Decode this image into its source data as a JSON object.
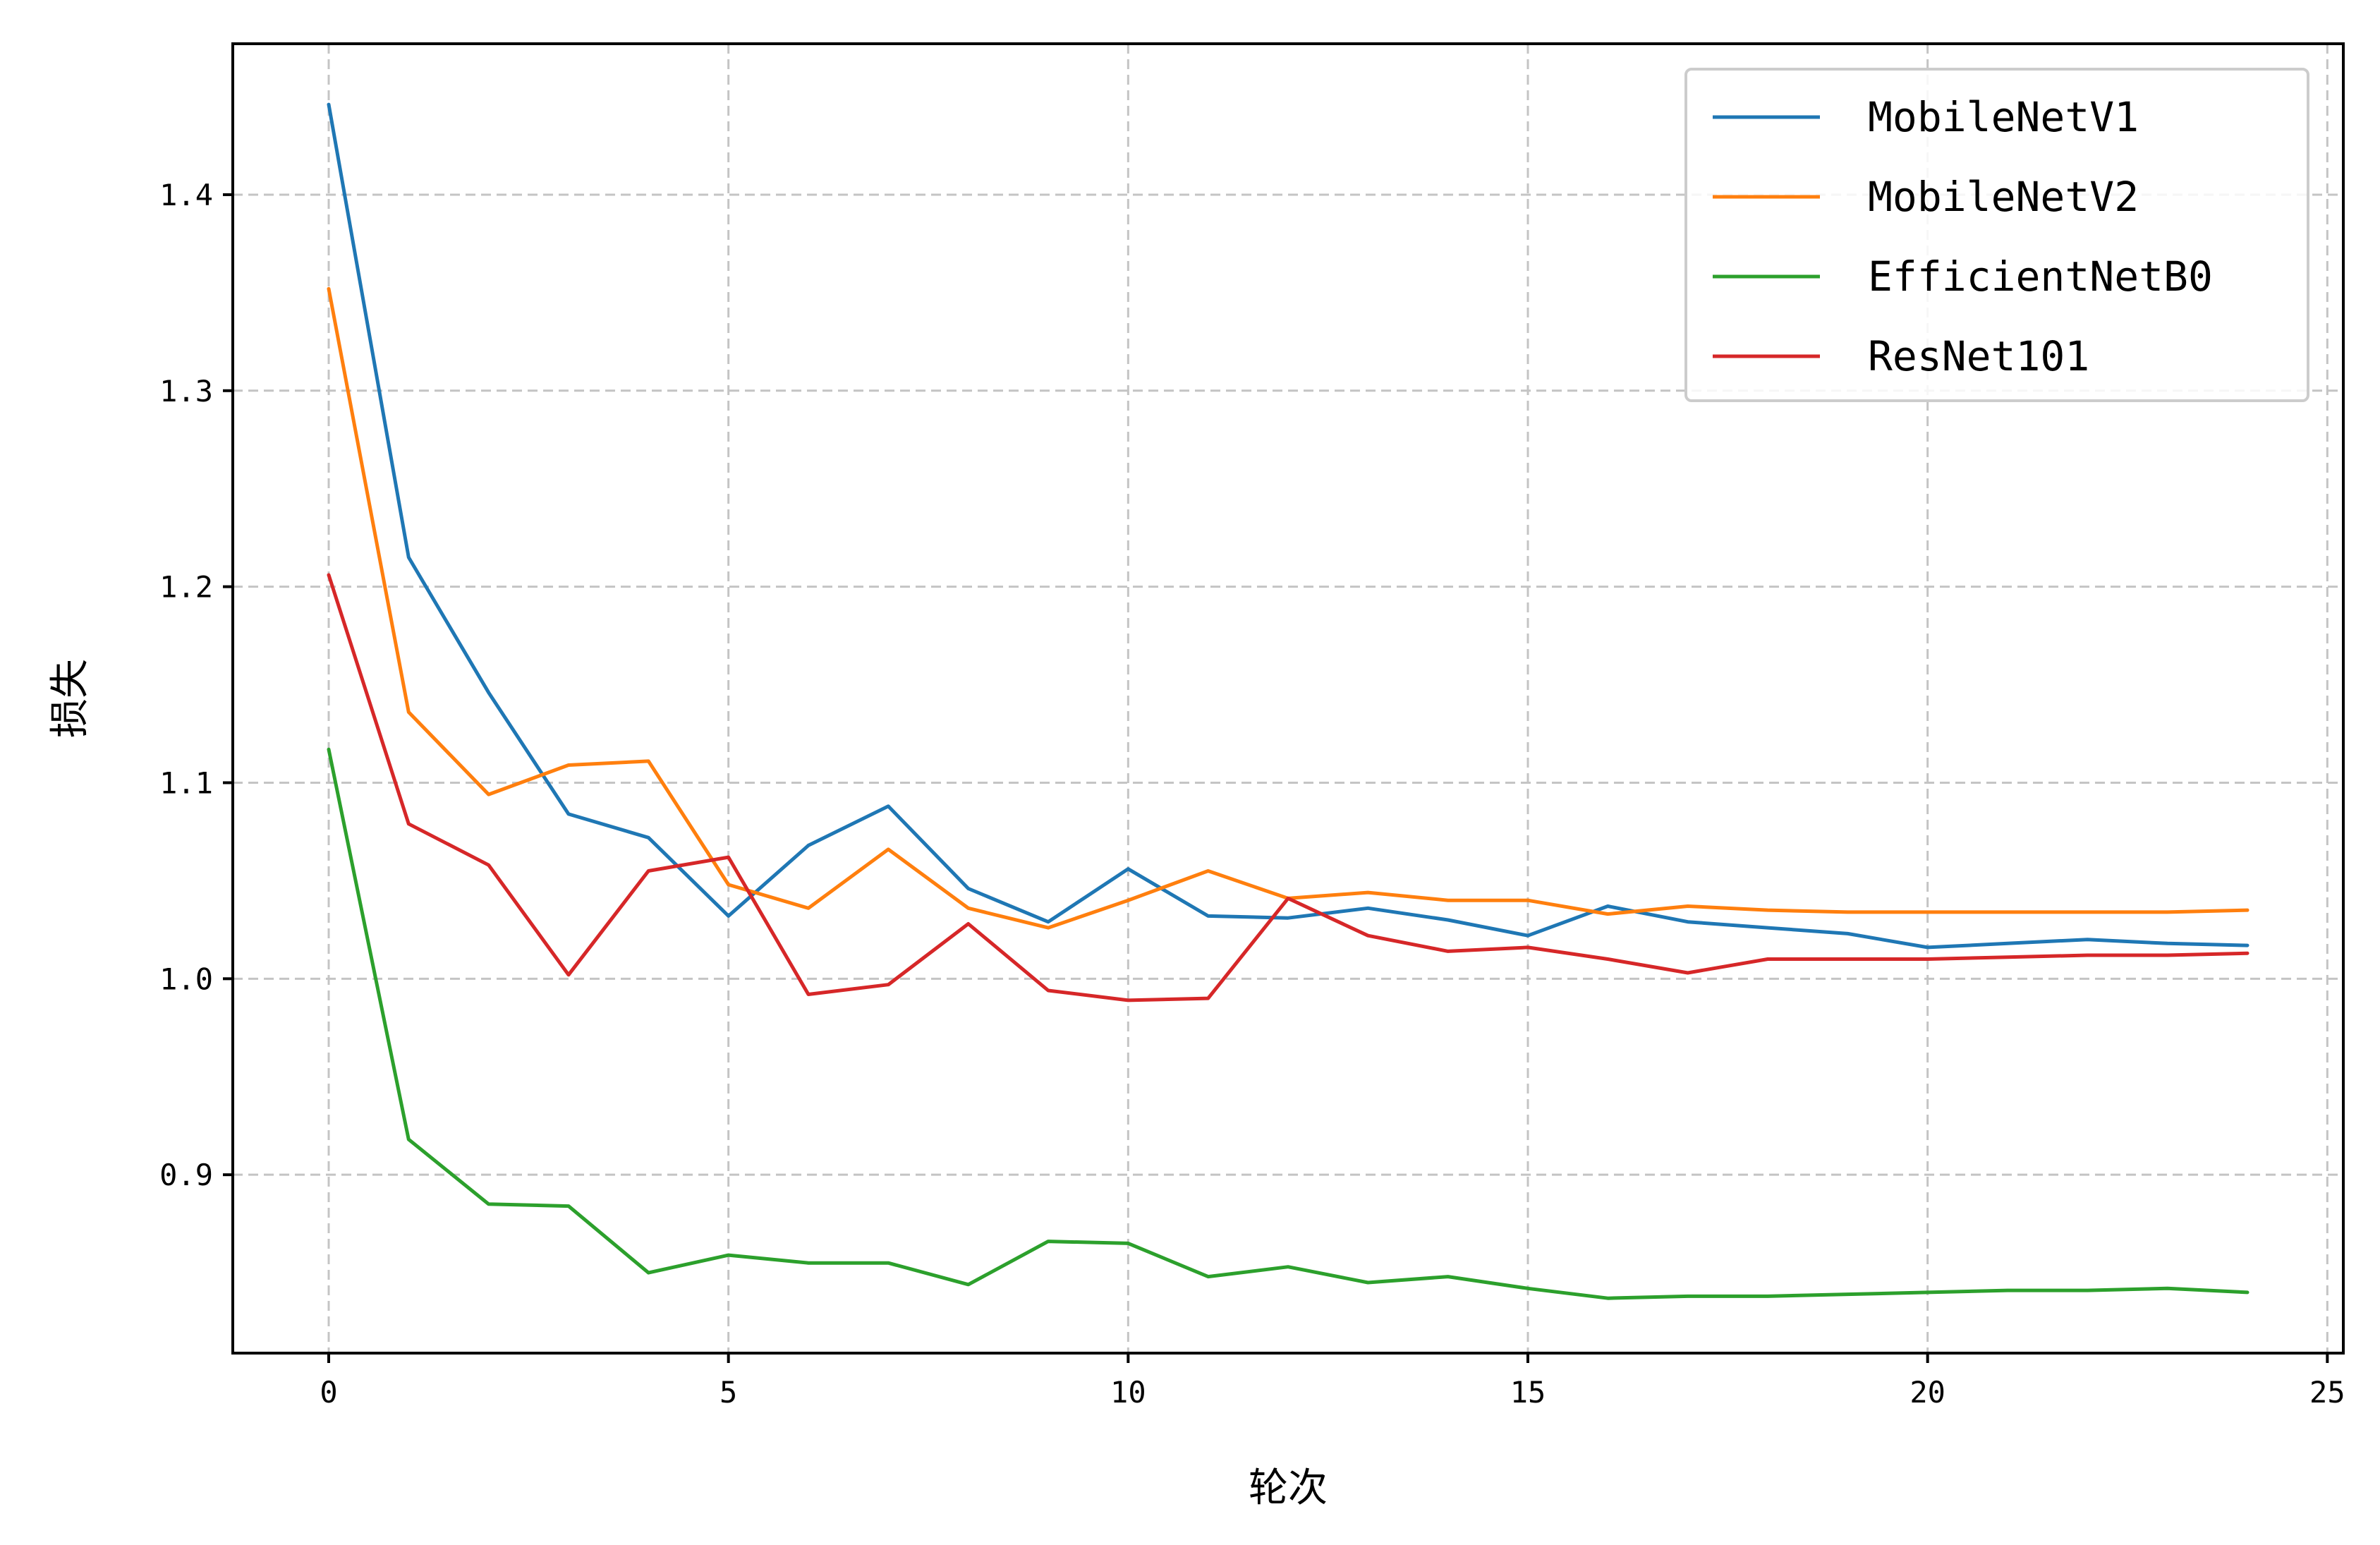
{
  "chart_data": {
    "type": "line",
    "title": "",
    "xlabel": "轮次",
    "ylabel": "损失",
    "xlim": [
      -1.2,
      25.2
    ],
    "ylim": [
      0.809,
      1.477
    ],
    "xticks": [
      0,
      5,
      10,
      15,
      20,
      25
    ],
    "yticks": [
      0.9,
      1.0,
      1.1,
      1.2,
      1.3,
      1.4
    ],
    "grid": true,
    "legend_position": "top-right",
    "x": [
      0,
      1,
      2,
      3,
      4,
      5,
      6,
      7,
      8,
      9,
      10,
      11,
      12,
      13,
      14,
      15,
      16,
      17,
      18,
      19,
      20,
      21,
      22,
      23,
      24
    ],
    "series": [
      {
        "name": "MobileNetV1",
        "color": "#1f77b4",
        "values": [
          1.446,
          1.215,
          1.146,
          1.084,
          1.072,
          1.032,
          1.068,
          1.088,
          1.046,
          1.029,
          1.056,
          1.032,
          1.031,
          1.036,
          1.03,
          1.022,
          1.037,
          1.029,
          1.026,
          1.023,
          1.016,
          1.018,
          1.02,
          1.018,
          1.017
        ]
      },
      {
        "name": "MobileNetV2",
        "color": "#ff7f0e",
        "values": [
          1.352,
          1.136,
          1.094,
          1.109,
          1.111,
          1.048,
          1.036,
          1.066,
          1.036,
          1.026,
          1.04,
          1.055,
          1.041,
          1.044,
          1.04,
          1.04,
          1.033,
          1.037,
          1.035,
          1.034,
          1.034,
          1.034,
          1.034,
          1.034,
          1.035
        ]
      },
      {
        "name": "EfficientNetB0",
        "color": "#2ca02c",
        "values": [
          1.117,
          0.918,
          0.885,
          0.884,
          0.85,
          0.859,
          0.855,
          0.855,
          0.844,
          0.866,
          0.865,
          0.848,
          0.853,
          0.845,
          0.848,
          0.842,
          0.837,
          0.838,
          0.838,
          0.839,
          0.84,
          0.841,
          0.841,
          0.842,
          0.84
        ]
      },
      {
        "name": "ResNet101",
        "color": "#d62728",
        "values": [
          1.206,
          1.079,
          1.058,
          1.002,
          1.055,
          1.062,
          0.992,
          0.997,
          1.028,
          0.994,
          0.989,
          0.99,
          1.041,
          1.022,
          1.014,
          1.016,
          1.01,
          1.003,
          1.01,
          1.01,
          1.01,
          1.011,
          1.012,
          1.012,
          1.013
        ]
      }
    ]
  }
}
